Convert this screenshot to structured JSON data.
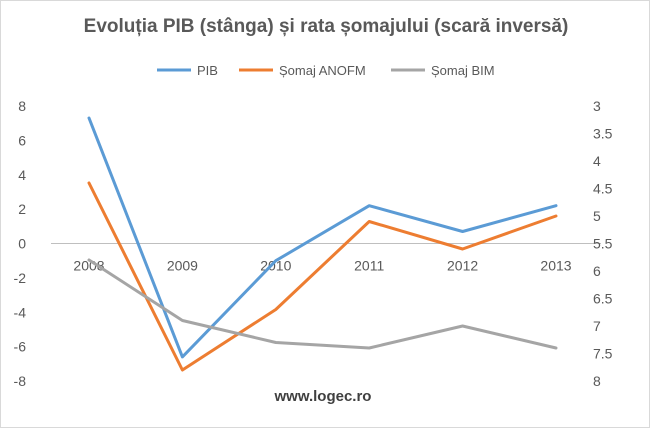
{
  "chart_data": {
    "type": "line",
    "title": "Evoluția PIB (stânga) și rata șomajului (scară inversă)",
    "categories": [
      "2008",
      "2009",
      "2010",
      "2011",
      "2012",
      "2013"
    ],
    "series": [
      {
        "name": "PIB",
        "axis": "left",
        "color": "#5b9bd5",
        "values": [
          7.3,
          -6.6,
          -1.0,
          2.2,
          0.7,
          2.2
        ]
      },
      {
        "name": "Șomaj ANOFM",
        "axis": "right",
        "color": "#ed7d31",
        "values": [
          4.4,
          7.8,
          6.7,
          5.1,
          5.6,
          5.0
        ]
      },
      {
        "name": "Șomaj BIM",
        "axis": "right",
        "color": "#a5a5a5",
        "values": [
          5.8,
          6.9,
          7.3,
          7.4,
          7.0,
          7.4
        ]
      }
    ],
    "y_left": {
      "min": -8,
      "max": 8,
      "ticks": [
        "8",
        "6",
        "4",
        "2",
        "0",
        "-2",
        "-4",
        "-6",
        "-8"
      ]
    },
    "y_right": {
      "min": 3,
      "max": 8,
      "inverted": true,
      "ticks": [
        "3",
        "3.5",
        "4",
        "4.5",
        "5",
        "5.5",
        "6",
        "6.5",
        "7",
        "7.5",
        "8"
      ]
    },
    "legend_position": "top",
    "grid": false,
    "annotation": "www.logec.ro"
  }
}
